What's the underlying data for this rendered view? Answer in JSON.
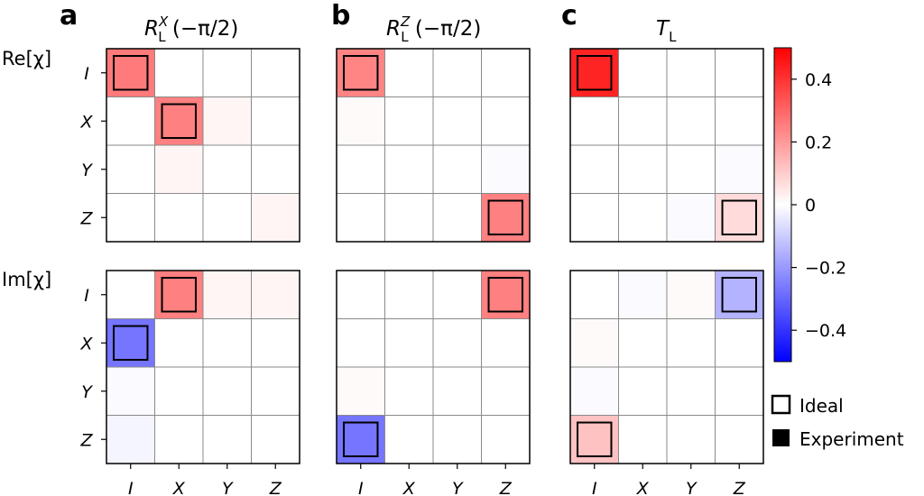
{
  "panels": [
    {
      "letter": "a",
      "title_main": "R",
      "title_sup": "X",
      "title_sub": "L",
      "title_arg": " (−π/2)"
    },
    {
      "letter": "b",
      "title_main": "R",
      "title_sup": "Z",
      "title_sub": "L",
      "title_arg": " (−π/2)"
    },
    {
      "letter": "c",
      "title_main": "T",
      "title_sup": "",
      "title_sub": "L",
      "title_arg": ""
    }
  ],
  "row_titles": [
    "Re[χ]",
    "Im[χ]"
  ],
  "chart_data": {
    "type": "heatmap",
    "row_labels": [
      "I",
      "X",
      "Y",
      "Z"
    ],
    "col_labels": [
      "I",
      "X",
      "Y",
      "Z"
    ],
    "colorbar": {
      "vmin": -0.5,
      "vmax": 0.5,
      "ticks": [
        0.4,
        0.2,
        0,
        -0.2,
        -0.4
      ],
      "tick_labels": [
        "0.4",
        "0.2",
        "0",
        "−0.2",
        "−0.4"
      ],
      "colormap": "bwr"
    },
    "legend": {
      "ideal_label": "Ideal",
      "experiment_label": "Experiment",
      "position": "bottom-right"
    },
    "panels": [
      {
        "name": "a",
        "re": {
          "experiment": [
            [
              0.26,
              0.0,
              0.0,
              0.0
            ],
            [
              0.0,
              0.25,
              0.02,
              0.0
            ],
            [
              0.0,
              0.02,
              0.0,
              0.0
            ],
            [
              0.0,
              0.0,
              0.0,
              0.02
            ]
          ],
          "ideal": [
            [
              0.25,
              0,
              0,
              0
            ],
            [
              0,
              0.25,
              0,
              0
            ],
            [
              0,
              0,
              0,
              0
            ],
            [
              0,
              0,
              0,
              0
            ]
          ]
        },
        "im": {
          "experiment": [
            [
              0.0,
              0.25,
              0.02,
              0.02
            ],
            [
              -0.27,
              0.0,
              0.0,
              0.0
            ],
            [
              -0.01,
              0.0,
              0.0,
              0.0
            ],
            [
              -0.02,
              0.0,
              0.0,
              0.0
            ]
          ],
          "ideal": [
            [
              0,
              0.25,
              0,
              0
            ],
            [
              -0.25,
              0,
              0,
              0
            ],
            [
              0,
              0,
              0,
              0
            ],
            [
              0,
              0,
              0,
              0
            ]
          ]
        }
      },
      {
        "name": "b",
        "re": {
          "experiment": [
            [
              0.24,
              0.0,
              0.0,
              0.0
            ],
            [
              0.01,
              0.0,
              0.0,
              0.0
            ],
            [
              0.0,
              0.0,
              0.0,
              -0.01
            ],
            [
              0.0,
              0.0,
              0.0,
              0.25
            ]
          ],
          "ideal": [
            [
              0.25,
              0,
              0,
              0
            ],
            [
              0,
              0,
              0,
              0
            ],
            [
              0,
              0,
              0,
              0
            ],
            [
              0,
              0,
              0,
              0.25
            ]
          ]
        },
        "im": {
          "experiment": [
            [
              0.0,
              0.0,
              0.0,
              0.25
            ],
            [
              0.0,
              0.0,
              0.0,
              0.0
            ],
            [
              0.01,
              0.0,
              0.0,
              0.0
            ],
            [
              -0.27,
              0.0,
              0.0,
              0.0
            ]
          ],
          "ideal": [
            [
              0,
              0,
              0,
              0.25
            ],
            [
              0,
              0,
              0,
              0
            ],
            [
              0,
              0,
              0,
              0
            ],
            [
              -0.25,
              0,
              0,
              0
            ]
          ]
        }
      },
      {
        "name": "c",
        "re": {
          "experiment": [
            [
              0.43,
              0.0,
              0.0,
              0.0
            ],
            [
              0.0,
              0.0,
              0.0,
              0.0
            ],
            [
              0.0,
              0.0,
              0.0,
              -0.01
            ],
            [
              0.0,
              0.0,
              -0.01,
              0.07
            ]
          ],
          "ideal": [
            [
              0.43,
              0,
              0,
              0
            ],
            [
              0,
              0,
              0,
              0
            ],
            [
              0,
              0,
              0,
              0
            ],
            [
              0,
              0,
              0,
              0.07
            ]
          ]
        },
        "im": {
          "experiment": [
            [
              0.0,
              -0.01,
              0.01,
              -0.15
            ],
            [
              0.01,
              0.0,
              0.0,
              0.0
            ],
            [
              -0.01,
              0.0,
              0.0,
              0.0
            ],
            [
              0.12,
              0.0,
              0.0,
              0.0
            ]
          ],
          "ideal": [
            [
              0,
              0,
              0,
              -0.18
            ],
            [
              0,
              0,
              0,
              0
            ],
            [
              0,
              0,
              0,
              0
            ],
            [
              0.18,
              0,
              0,
              0
            ]
          ]
        }
      }
    ]
  }
}
